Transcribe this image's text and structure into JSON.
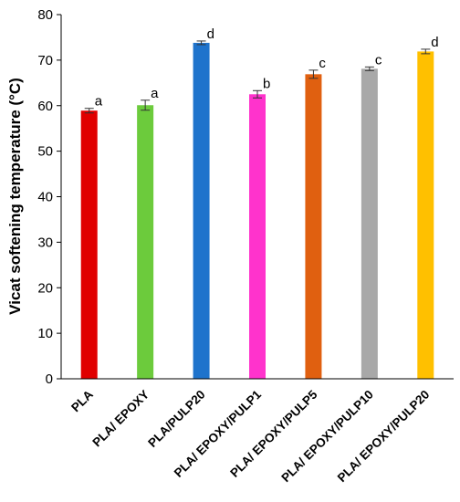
{
  "chart_data": {
    "type": "bar",
    "title": "",
    "xlabel": "",
    "ylabel": "Vicat softening temperature (°C)",
    "ylim": [
      0,
      80
    ],
    "yticks": [
      0,
      10,
      20,
      30,
      40,
      50,
      60,
      70,
      80
    ],
    "grid": false,
    "categories": [
      "PLA",
      "PLA/ EPOXY",
      "PLA/PULP20",
      "PLA/ EPOXY/PULP1",
      "PLA/ EPOXY/PULP5",
      "PLA/ EPOXY/PULP10",
      "PLA/ EPOXY/PULP20"
    ],
    "values": [
      58.9,
      60.1,
      73.8,
      62.5,
      66.9,
      68.1,
      71.9
    ],
    "errors": [
      0.5,
      1.1,
      0.4,
      0.8,
      0.9,
      0.4,
      0.5
    ],
    "significance": [
      "a",
      "a",
      "d",
      "b",
      "c",
      "c",
      "d"
    ],
    "colors": [
      "#e00000",
      "#6ccb3c",
      "#1e73cc",
      "#ff33cc",
      "#e06010",
      "#a8a8a8",
      "#ffc000"
    ]
  }
}
